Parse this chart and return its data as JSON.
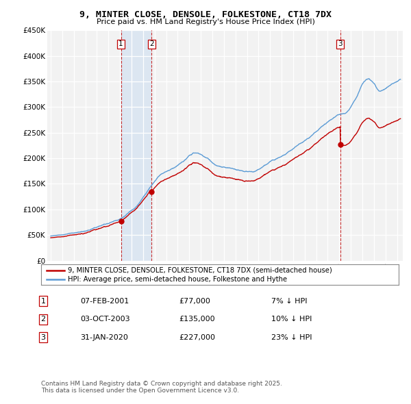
{
  "title": "9, MINTER CLOSE, DENSOLE, FOLKESTONE, CT18 7DX",
  "subtitle": "Price paid vs. HM Land Registry's House Price Index (HPI)",
  "ylabel_ticks": [
    "£0",
    "£50K",
    "£100K",
    "£150K",
    "£200K",
    "£250K",
    "£300K",
    "£350K",
    "£400K",
    "£450K"
  ],
  "ytick_vals": [
    0,
    50000,
    100000,
    150000,
    200000,
    250000,
    300000,
    350000,
    400000,
    450000
  ],
  "ylim": [
    0,
    450000
  ],
  "xlim_start": 1994.7,
  "xlim_end": 2025.5,
  "sale_dates": [
    2001.08,
    2003.75,
    2020.08
  ],
  "sale_prices": [
    77000,
    135000,
    227000
  ],
  "sale_labels": [
    "1",
    "2",
    "3"
  ],
  "legend_line1": "9, MINTER CLOSE, DENSOLE, FOLKESTONE, CT18 7DX (semi-detached house)",
  "legend_line2": "HPI: Average price, semi-detached house, Folkestone and Hythe",
  "table_data": [
    [
      "1",
      "07-FEB-2001",
      "£77,000",
      "7% ↓ HPI"
    ],
    [
      "2",
      "03-OCT-2003",
      "£135,000",
      "10% ↓ HPI"
    ],
    [
      "3",
      "31-JAN-2020",
      "£227,000",
      "23% ↓ HPI"
    ]
  ],
  "footnote": "Contains HM Land Registry data © Crown copyright and database right 2025.\nThis data is licensed under the Open Government Licence v3.0.",
  "hpi_color": "#5b9bd5",
  "price_color": "#c00000",
  "shade_color": "#dce6f1",
  "background_color": "#ffffff",
  "plot_bg_color": "#f2f2f2"
}
